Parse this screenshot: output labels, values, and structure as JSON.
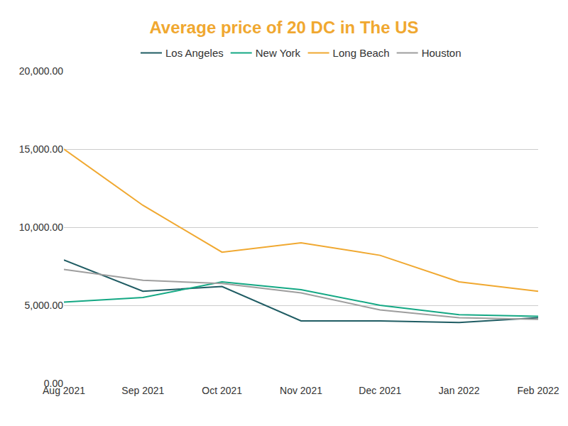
{
  "chart_data": {
    "type": "line",
    "title": "Average price of 20 DC in The US",
    "categories": [
      "Aug 2021",
      "Sep 2021",
      "Oct 2021",
      "Nov 2021",
      "Dec 2021",
      "Jan 2022",
      "Feb 2022"
    ],
    "series": [
      {
        "name": "Los Angeles",
        "color": "#1f5c63",
        "values": [
          7900,
          5900,
          6200,
          4000,
          4000,
          3900,
          4200
        ]
      },
      {
        "name": "New York",
        "color": "#14a884",
        "values": [
          5200,
          5500,
          6500,
          6000,
          5000,
          4400,
          4300
        ]
      },
      {
        "name": "Long Beach",
        "color": "#f0a830",
        "values": [
          15000,
          11400,
          8400,
          9000,
          8200,
          6500,
          5900
        ]
      },
      {
        "name": "Houston",
        "color": "#9e9e9e",
        "values": [
          7300,
          6600,
          6400,
          5800,
          4700,
          4200,
          4100
        ]
      }
    ],
    "ylim": [
      0,
      20000
    ],
    "yticks": [
      {
        "value": 0,
        "label": "0.00"
      },
      {
        "value": 5000,
        "label": "5,000.00"
      },
      {
        "value": 10000,
        "label": "10,000.00"
      },
      {
        "value": 15000,
        "label": "15,000.00"
      },
      {
        "value": 20000,
        "label": "20,000.00"
      }
    ],
    "grid": true,
    "legend": "top"
  }
}
